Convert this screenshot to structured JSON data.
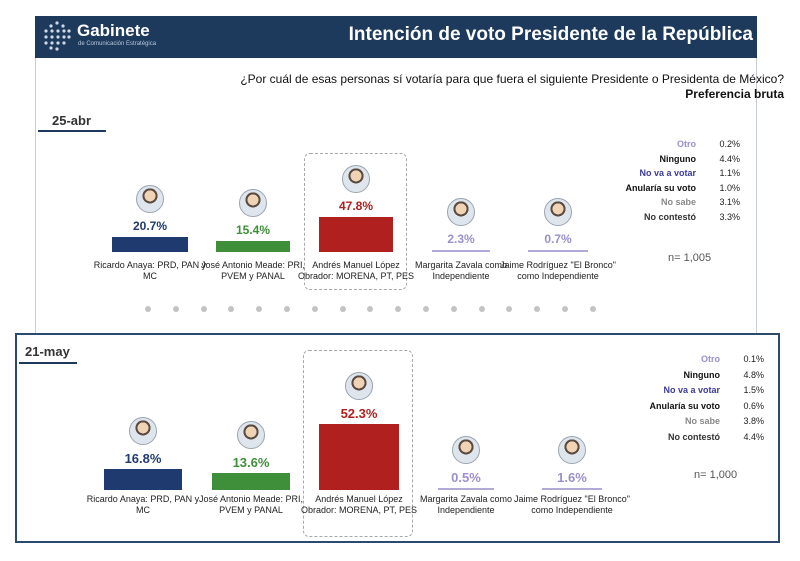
{
  "brand": {
    "name": "Gabinete",
    "subtitle": "de Comunicación Estratégica"
  },
  "title": "Intención de voto Presidente de la República",
  "question": "¿Por cuál de esas personas sí votaría para que fuera el siguiente Presidente o Presidenta de México?",
  "preference": "Preferencia bruta",
  "colors": {
    "header_bg": "#1d3a5c",
    "anaya": "#1f3a6e",
    "meade": "#3f8f3a",
    "amlo": "#b0201f",
    "zavala": "#b3a9d9",
    "bronco": "#b3a9d9"
  },
  "chart_data": [
    {
      "type": "bar",
      "title": "25-abr",
      "categories": [
        "Ricardo Anaya: PRD, PAN y MC",
        "José Antonio Meade: PRI, PVEM y PANAL",
        "Andrés Manuel López Obrador: MORENA, PT, PES",
        "Margarita Zavala como Independiente",
        "Jaime Rodríguez \"El Bronco\" como Independiente"
      ],
      "values": [
        20.7,
        15.4,
        47.8,
        2.3,
        0.7
      ],
      "value_labels": [
        "20.7%",
        "15.4%",
        "47.8%",
        "2.3%",
        "0.7%"
      ],
      "others": [
        {
          "label": "Otro",
          "value": "0.2%",
          "color": "#9b8fcf"
        },
        {
          "label": "Ninguno",
          "value": "4.4%",
          "color": "#111111"
        },
        {
          "label": "No va a votar",
          "value": "1.1%",
          "color": "#3b3b9a"
        },
        {
          "label": "Anularía su voto",
          "value": "1.0%",
          "color": "#111111"
        },
        {
          "label": "No sabe",
          "value": "3.1%",
          "color": "#888888"
        },
        {
          "label": "No contestó",
          "value": "3.3%",
          "color": "#333333"
        }
      ],
      "n": "n= 1,005"
    },
    {
      "type": "bar",
      "title": "21-may",
      "categories": [
        "Ricardo Anaya: PRD, PAN y MC",
        "José Antonio Meade: PRI, PVEM y PANAL",
        "Andrés Manuel López Obrador: MORENA, PT, PES",
        "Margarita Zavala como Independiente",
        "Jaime Rodríguez \"El Bronco\" como Independiente"
      ],
      "values": [
        16.8,
        13.6,
        52.3,
        0.5,
        1.6
      ],
      "value_labels": [
        "16.8%",
        "13.6%",
        "52.3%",
        "0.5%",
        "1.6%"
      ],
      "others": [
        {
          "label": "Otro",
          "value": "0.1%",
          "color": "#9b8fcf"
        },
        {
          "label": "Ninguno",
          "value": "4.8%",
          "color": "#111111"
        },
        {
          "label": "No va a votar",
          "value": "1.5%",
          "color": "#3b3b9a"
        },
        {
          "label": "Anularía su voto",
          "value": "0.6%",
          "color": "#111111"
        },
        {
          "label": "No sabe",
          "value": "3.8%",
          "color": "#888888"
        },
        {
          "label": "No contestó",
          "value": "4.4%",
          "color": "#333333"
        }
      ],
      "n": "n= 1,000"
    }
  ]
}
